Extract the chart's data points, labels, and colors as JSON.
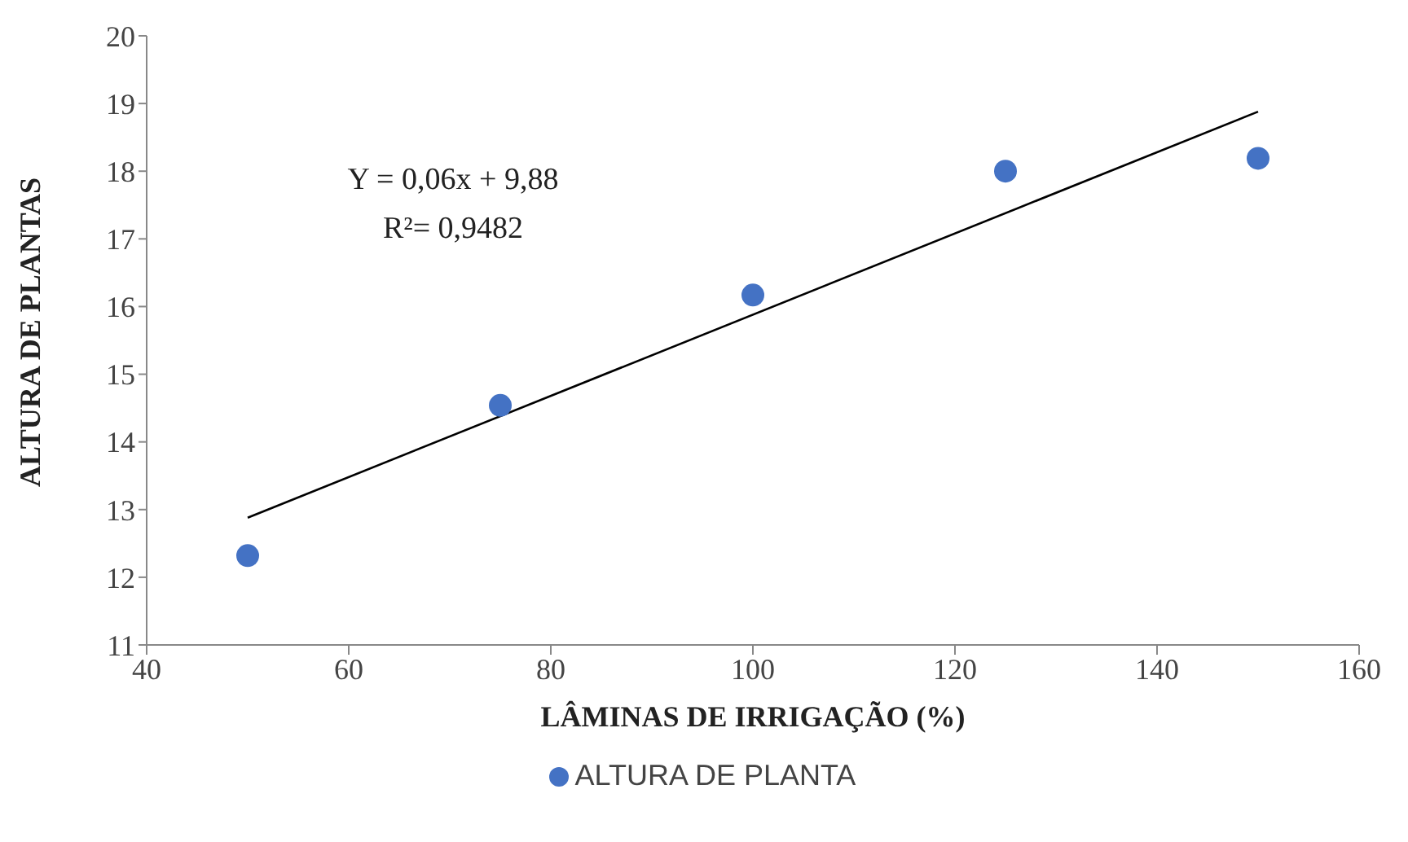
{
  "chart_data": {
    "type": "scatter",
    "xlabel": "LÂMINAS DE IRRIGAÇÃO  (%)",
    "ylabel": "ALTURA DE PLANTAS",
    "x": [
      50,
      75,
      100,
      125,
      150
    ],
    "series": [
      {
        "name": "ALTURA DE PLANTA",
        "color": "#4472c4",
        "marker": "circle",
        "values": [
          12.32,
          14.54,
          16.17,
          18.0,
          18.19
        ]
      },
      {
        "type": "line",
        "color": "#000000",
        "x": [
          50,
          150
        ],
        "values": [
          12.88,
          18.88
        ]
      }
    ],
    "annotations": [
      "Y = 0,06x + 9,88",
      "R²= 0,9482"
    ],
    "xlim": [
      40,
      160
    ],
    "xticks": [
      40,
      60,
      80,
      100,
      120,
      140,
      160
    ],
    "ylim": [
      11,
      20
    ],
    "yticks": [
      11,
      12,
      13,
      14,
      15,
      16,
      17,
      18,
      19,
      20
    ],
    "grid": false,
    "legend": "bottom"
  }
}
